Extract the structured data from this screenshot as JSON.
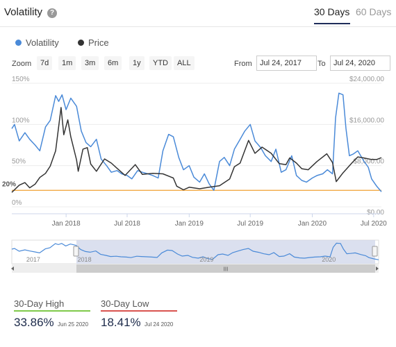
{
  "header": {
    "title": "Volatility",
    "help_icon": "question-circle-icon",
    "tabs": [
      {
        "label": "30 Days",
        "active": true
      },
      {
        "label": "60 Days",
        "active": false
      }
    ]
  },
  "legend": [
    {
      "label": "Volatility",
      "color": "#4a8ad8"
    },
    {
      "label": "Price",
      "color": "#333333"
    }
  ],
  "controls": {
    "zoom_label": "Zoom",
    "zoom_buttons": [
      "7d",
      "1m",
      "3m",
      "6m",
      "1y",
      "YTD",
      "ALL"
    ],
    "from_label": "From",
    "from_value": "Jul 24, 2017",
    "to_label": "To",
    "to_value": "Jul 24, 2020"
  },
  "chart_data": {
    "type": "line",
    "x_range": [
      "2017-07-24",
      "2020-07-24"
    ],
    "x_ticks": [
      "Jan 2018",
      "Jul 2018",
      "Jan 2019",
      "Jul 2019",
      "Jan 2020",
      "Jul 2020"
    ],
    "y_left": {
      "ticks": [
        "150%",
        "100%",
        "50%",
        "0%"
      ],
      "range": [
        0,
        150
      ],
      "unit": "%"
    },
    "y_right": {
      "ticks": [
        "$24,000.00",
        "$16,000.00",
        "$8,000.00",
        "$0.00"
      ],
      "range": [
        0,
        24000
      ],
      "unit": "$"
    },
    "reference_line": {
      "label": "20%",
      "value": 20,
      "color": "#f0a030"
    },
    "series": [
      {
        "name": "Volatility",
        "axis": "left",
        "color": "#4a8ad8",
        "points": [
          [
            "2017-07-24",
            95
          ],
          [
            "2017-08-01",
            100
          ],
          [
            "2017-08-15",
            80
          ],
          [
            "2017-09-01",
            90
          ],
          [
            "2017-09-15",
            82
          ],
          [
            "2017-10-01",
            75
          ],
          [
            "2017-10-15",
            68
          ],
          [
            "2017-11-01",
            97
          ],
          [
            "2017-11-15",
            105
          ],
          [
            "2017-12-01",
            135
          ],
          [
            "2017-12-10",
            128
          ],
          [
            "2017-12-20",
            136
          ],
          [
            "2018-01-01",
            118
          ],
          [
            "2018-01-15",
            132
          ],
          [
            "2018-02-01",
            122
          ],
          [
            "2018-02-15",
            92
          ],
          [
            "2018-03-01",
            78
          ],
          [
            "2018-03-15",
            73
          ],
          [
            "2018-04-01",
            82
          ],
          [
            "2018-04-15",
            58
          ],
          [
            "2018-05-01",
            50
          ],
          [
            "2018-05-15",
            42
          ],
          [
            "2018-06-01",
            44
          ],
          [
            "2018-06-15",
            40
          ],
          [
            "2018-07-01",
            38
          ],
          [
            "2018-07-15",
            34
          ],
          [
            "2018-08-01",
            44
          ],
          [
            "2018-08-15",
            42
          ],
          [
            "2018-09-01",
            40
          ],
          [
            "2018-09-15",
            38
          ],
          [
            "2018-10-01",
            35
          ],
          [
            "2018-10-15",
            68
          ],
          [
            "2018-11-01",
            88
          ],
          [
            "2018-11-15",
            85
          ],
          [
            "2018-12-01",
            60
          ],
          [
            "2018-12-15",
            45
          ],
          [
            "2019-01-01",
            50
          ],
          [
            "2019-01-15",
            36
          ],
          [
            "2019-02-01",
            30
          ],
          [
            "2019-02-15",
            40
          ],
          [
            "2019-03-01",
            28
          ],
          [
            "2019-03-15",
            20
          ],
          [
            "2019-04-01",
            55
          ],
          [
            "2019-04-15",
            60
          ],
          [
            "2019-05-01",
            50
          ],
          [
            "2019-05-15",
            70
          ],
          [
            "2019-06-01",
            82
          ],
          [
            "2019-06-15",
            92
          ],
          [
            "2019-07-01",
            100
          ],
          [
            "2019-07-15",
            80
          ],
          [
            "2019-08-01",
            72
          ],
          [
            "2019-08-15",
            62
          ],
          [
            "2019-09-01",
            55
          ],
          [
            "2019-09-15",
            70
          ],
          [
            "2019-10-01",
            42
          ],
          [
            "2019-10-15",
            45
          ],
          [
            "2019-11-01",
            62
          ],
          [
            "2019-11-15",
            38
          ],
          [
            "2019-12-01",
            32
          ],
          [
            "2019-12-15",
            30
          ],
          [
            "2020-01-01",
            35
          ],
          [
            "2020-01-15",
            38
          ],
          [
            "2020-02-01",
            40
          ],
          [
            "2020-02-15",
            45
          ],
          [
            "2020-03-01",
            40
          ],
          [
            "2020-03-10",
            108
          ],
          [
            "2020-03-20",
            138
          ],
          [
            "2020-04-01",
            136
          ],
          [
            "2020-04-10",
            95
          ],
          [
            "2020-04-20",
            62
          ],
          [
            "2020-05-01",
            64
          ],
          [
            "2020-05-15",
            68
          ],
          [
            "2020-06-01",
            56
          ],
          [
            "2020-06-15",
            48
          ],
          [
            "2020-06-25",
            33.86
          ],
          [
            "2020-07-10",
            25
          ],
          [
            "2020-07-24",
            18.41
          ]
        ]
      },
      {
        "name": "Price",
        "axis": "right",
        "color": "#333333",
        "points": [
          [
            "2017-07-24",
            2800
          ],
          [
            "2017-08-15",
            4200
          ],
          [
            "2017-09-01",
            4700
          ],
          [
            "2017-09-15",
            3700
          ],
          [
            "2017-10-01",
            4400
          ],
          [
            "2017-10-15",
            5700
          ],
          [
            "2017-11-01",
            6500
          ],
          [
            "2017-11-15",
            7900
          ],
          [
            "2017-12-01",
            10900
          ],
          [
            "2017-12-17",
            19300
          ],
          [
            "2017-12-25",
            14000
          ],
          [
            "2018-01-06",
            16900
          ],
          [
            "2018-01-15",
            13600
          ],
          [
            "2018-02-01",
            9100
          ],
          [
            "2018-02-06",
            6900
          ],
          [
            "2018-02-20",
            11200
          ],
          [
            "2018-03-05",
            11500
          ],
          [
            "2018-03-15",
            8300
          ],
          [
            "2018-04-01",
            6900
          ],
          [
            "2018-04-25",
            9300
          ],
          [
            "2018-05-15",
            8500
          ],
          [
            "2018-06-01",
            7500
          ],
          [
            "2018-06-25",
            6100
          ],
          [
            "2018-07-25",
            8200
          ],
          [
            "2018-08-15",
            6300
          ],
          [
            "2018-09-15",
            6500
          ],
          [
            "2018-10-15",
            6400
          ],
          [
            "2018-11-15",
            5600
          ],
          [
            "2018-11-25",
            4000
          ],
          [
            "2018-12-15",
            3300
          ],
          [
            "2019-01-01",
            3800
          ],
          [
            "2019-02-01",
            3500
          ],
          [
            "2019-03-01",
            3800
          ],
          [
            "2019-04-01",
            4100
          ],
          [
            "2019-05-01",
            5400
          ],
          [
            "2019-05-15",
            7800
          ],
          [
            "2019-06-01",
            8500
          ],
          [
            "2019-06-26",
            12900
          ],
          [
            "2019-07-15",
            10400
          ],
          [
            "2019-08-05",
            11600
          ],
          [
            "2019-09-01",
            10400
          ],
          [
            "2019-09-25",
            8400
          ],
          [
            "2019-10-15",
            8200
          ],
          [
            "2019-10-26",
            9500
          ],
          [
            "2019-11-15",
            8500
          ],
          [
            "2019-12-01",
            7400
          ],
          [
            "2019-12-20",
            7200
          ],
          [
            "2020-01-15",
            8800
          ],
          [
            "2020-02-13",
            10300
          ],
          [
            "2020-03-01",
            8600
          ],
          [
            "2020-03-12",
            4900
          ],
          [
            "2020-04-01",
            6600
          ],
          [
            "2020-04-30",
            8700
          ],
          [
            "2020-05-15",
            9700
          ],
          [
            "2020-06-01",
            9500
          ],
          [
            "2020-06-25",
            9200
          ],
          [
            "2020-07-10",
            9200
          ],
          [
            "2020-07-24",
            9550
          ]
        ]
      }
    ]
  },
  "navigator": {
    "labels": [
      "2017",
      "2018",
      "2019",
      "2020"
    ],
    "scroll_handle": "grip-icon",
    "left_arrow": "arrow-left-icon",
    "right_arrow": "arrow-right-icon"
  },
  "stats": [
    {
      "label": "30-Day High",
      "value": "33.86%",
      "date": "Jun 25 2020",
      "color": "#7ec94a"
    },
    {
      "label": "30-Day Low",
      "value": "18.41%",
      "date": "Jul 24 2020",
      "color": "#d9534f"
    }
  ]
}
